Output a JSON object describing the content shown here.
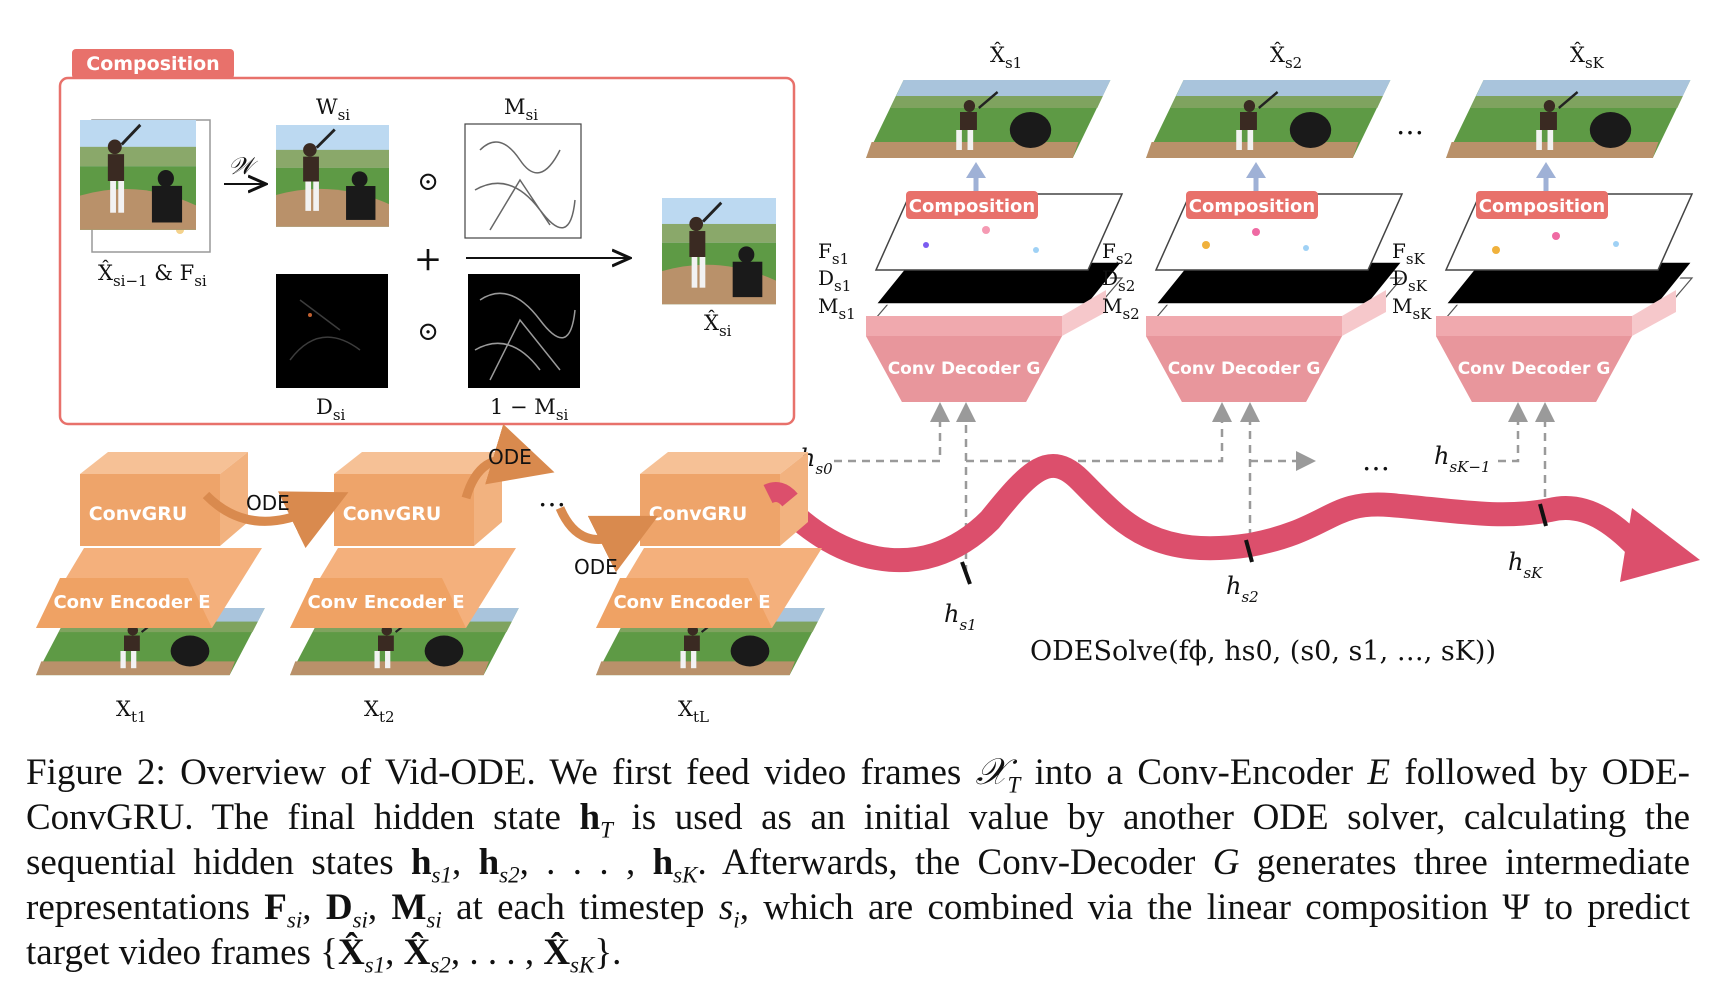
{
  "composition_box": {
    "title": "Composition",
    "input_label": "X̂",
    "input_sub": "si−1",
    "amp_f": "& F",
    "f_sub": "si",
    "warp_label": "𝒲",
    "w_label": "W",
    "m_label": "M",
    "d_label": "D",
    "one_minus_m": "1 − M",
    "si_sub": "si",
    "odot": "⊙",
    "plus": "+",
    "output_label": "X̂"
  },
  "decoders": [
    {
      "out": "X̂",
      "out_sub": "s1",
      "comp": "Composition",
      "f": "F",
      "d": "D",
      "m": "M",
      "sub": "s1",
      "dec": "Conv Decoder G"
    },
    {
      "out": "X̂",
      "out_sub": "s2",
      "comp": "Composition",
      "f": "F",
      "d": "D",
      "m": "M",
      "sub": "s2",
      "dec": "Conv Decoder G"
    },
    {
      "out": "X̂",
      "out_sub": "sK",
      "comp": "Composition",
      "f": "F",
      "d": "D",
      "m": "M",
      "sub": "sK",
      "dec": "Conv Decoder G"
    }
  ],
  "top_dots": "…",
  "encoders": [
    {
      "gru": "ConvGRU",
      "enc": "Conv Encoder E",
      "x": "X",
      "x_sub": "t1"
    },
    {
      "gru": "ConvGRU",
      "enc": "Conv Encoder E",
      "x": "X",
      "x_sub": "t2"
    },
    {
      "gru": "ConvGRU",
      "enc": "Conv Encoder E",
      "x": "X",
      "x_sub": "tL"
    }
  ],
  "ode_label": "ODE",
  "enc_dots": "…",
  "hidden": {
    "h": "h",
    "s0": "s0",
    "s1": "s1",
    "s2": "s2",
    "sK": "sK",
    "sKm1": "sK−1",
    "dots": "…"
  },
  "odesolve_label": "ODESolve(fϕ, hs0, (s0, s1, …, sK))",
  "caption": {
    "p1": "Figure 2: Overview of Vid-ODE. We first feed video frames ",
    "XT": "𝒳",
    "T": "T",
    "p2": " into a Conv-Encoder ",
    "E": "E",
    "p3": " followed by ODE-ConvGRU. The final hidden state ",
    "hT": "h",
    "p4": " is used as an initial value by another ODE solver, calculating the sequential hidden states ",
    "hs": "h",
    "s1": "s1",
    "s2": "s2",
    "sK": "sK",
    "p5": ", . . . , ",
    "p6": ". Afterwards, the Conv-Decoder ",
    "G": "G",
    "p7": " generates three intermediate representations ",
    "F": "F",
    "D": "D",
    "M": "M",
    "si": "si",
    "p8": " at each timestep ",
    "s": "s",
    "i": "i",
    "p9": ", which are combined via the linear composition Ψ to predict target video frames {",
    "Xhat": "X̂",
    "p10": "}."
  },
  "colors": {
    "composition_red": "#e8716b",
    "encoder_orange": "#f4b07c",
    "gru_orange": "#eea46a",
    "decoder_pink": "#f0a9ae",
    "arrow_red": "#dc4f6c",
    "ode_arrow": "#d98a4e",
    "dashed": "#9a9a9a",
    "up_arrow": "#9fb1d6"
  }
}
